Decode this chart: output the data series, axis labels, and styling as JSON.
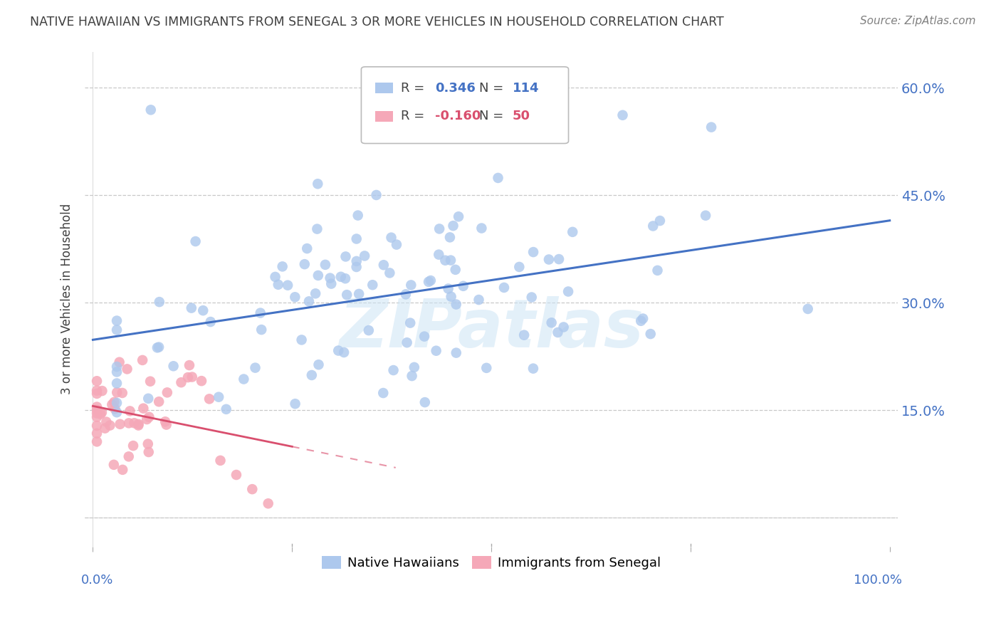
{
  "title": "NATIVE HAWAIIAN VS IMMIGRANTS FROM SENEGAL 3 OR MORE VEHICLES IN HOUSEHOLD CORRELATION CHART",
  "source": "Source: ZipAtlas.com",
  "ylabel": "3 or more Vehicles in Household",
  "yticks": [
    0.0,
    0.15,
    0.3,
    0.45,
    0.6
  ],
  "ytick_labels": [
    "",
    "15.0%",
    "30.0%",
    "45.0%",
    "60.0%"
  ],
  "xlim": [
    -0.01,
    1.01
  ],
  "ylim": [
    -0.04,
    0.65
  ],
  "watermark": "ZIPatlas",
  "legend_label_blue": "Native Hawaiians",
  "legend_label_pink": "Immigrants from Senegal",
  "blue_color": "#adc8ed",
  "blue_line_color": "#4472c4",
  "pink_color": "#f5a8b8",
  "pink_line_color": "#d94f6e",
  "axis_color": "#4472c4",
  "title_color": "#404040",
  "source_color": "#808080",
  "grid_color": "#c8c8c8",
  "blue_r_val": "0.346",
  "blue_n_val": "114",
  "pink_r_val": "-0.160",
  "pink_n_val": "50"
}
